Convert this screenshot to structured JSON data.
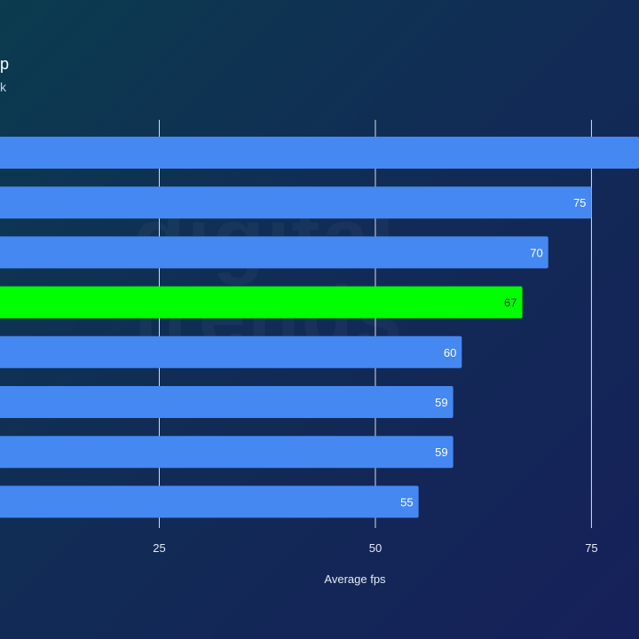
{
  "header": {
    "title_fragment": "p",
    "subtitle_fragment": "k"
  },
  "watermark": {
    "text": "digital trends ®"
  },
  "colors": {
    "bar_default": "#4688f1",
    "bar_highlight": "#00ff00",
    "grid": "#d8dde8",
    "label": "#ffffff"
  },
  "chart_data": {
    "type": "bar",
    "orientation": "horizontal",
    "xlabel": "Average fps",
    "xlim": [
      0,
      80.5
    ],
    "xticks": [
      25,
      50,
      75
    ],
    "grid": true,
    "legend": "none",
    "values": [
      80.5,
      75,
      70,
      67,
      60,
      59,
      59,
      55
    ],
    "labels": [
      "",
      "75",
      "70",
      "67",
      "60",
      "59",
      "59",
      "55"
    ],
    "highlight_index": 3
  }
}
